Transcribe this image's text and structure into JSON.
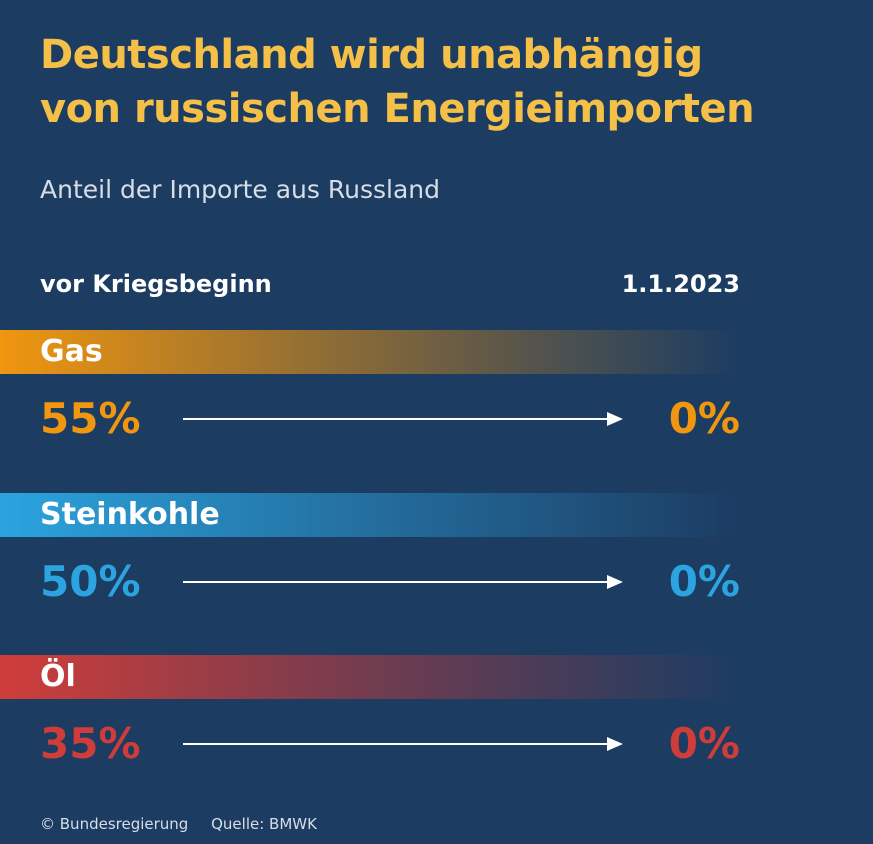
{
  "header": {
    "title_line1": "Deutschland wird unabhängig",
    "title_line2": "von russischen Energieimporten",
    "subtitle": "Anteil der Importe aus Russland"
  },
  "columns": {
    "left": "vor Kriegsbeginn",
    "right": "1.1.2023"
  },
  "rows": [
    {
      "label": "Gas",
      "before": "55%",
      "after": "0%",
      "color": "#f0960f"
    },
    {
      "label": "Steinkohle",
      "before": "50%",
      "after": "0%",
      "color": "#2ba4df"
    },
    {
      "label": "Öl",
      "before": "35%",
      "after": "0%",
      "color": "#cf3d3a"
    }
  ],
  "footer": {
    "copyright": "© Bundesregierung",
    "source": "Quelle: BMWK"
  },
  "chart_data": {
    "type": "table",
    "title": "Deutschland wird unabhängig von russischen Energieimporten",
    "subtitle": "Anteil der Importe aus Russland",
    "columns": [
      "vor Kriegsbeginn",
      "1.1.2023"
    ],
    "categories": [
      "Gas",
      "Steinkohle",
      "Öl"
    ],
    "series": [
      {
        "name": "vor Kriegsbeginn",
        "values": [
          55,
          50,
          35
        ]
      },
      {
        "name": "1.1.2023",
        "values": [
          0,
          0,
          0
        ]
      }
    ],
    "unit": "%"
  }
}
